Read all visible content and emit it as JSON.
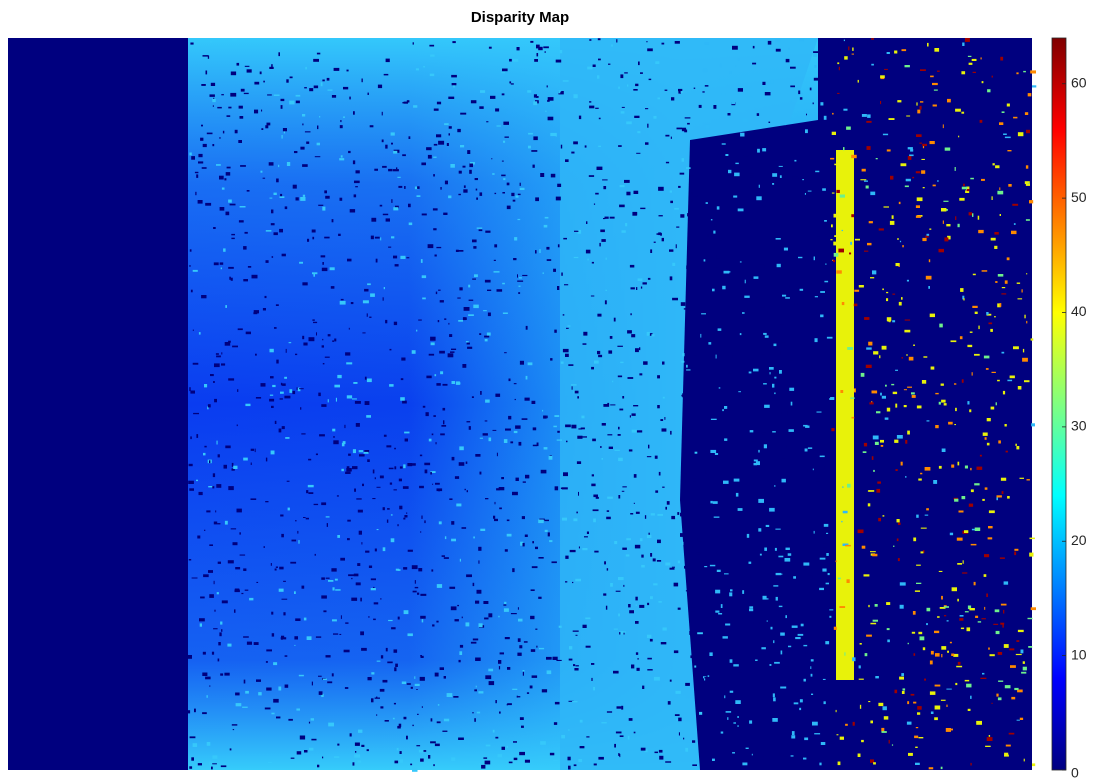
{
  "chart_data": {
    "type": "image",
    "title": "Disparity Map",
    "colorbar": {
      "colormap": "jet",
      "clim": [
        0,
        64
      ],
      "ticks": [
        0,
        10,
        20,
        30,
        40,
        50,
        60
      ]
    }
  }
}
